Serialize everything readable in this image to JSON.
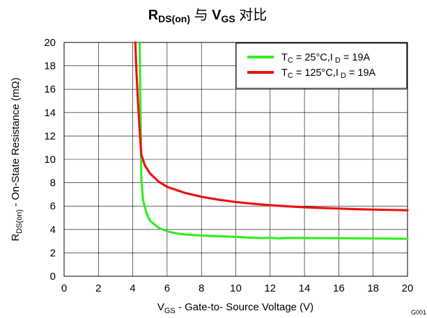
{
  "chart_data": {
    "type": "line",
    "title": {
      "r_main": "R",
      "r_sub": "DS(on)",
      "connector": " 与 ",
      "v_main": "V",
      "v_sub": "GS",
      "suffix": " 对比"
    },
    "xlabel": {
      "main": "V",
      "sub": "GS",
      "rest": " - Gate-to- Source Voltage (V)"
    },
    "ylabel": {
      "main": "R",
      "sub": "DS(on)",
      "rest": " - On-State Resistance  (mΩ)"
    },
    "xlim": [
      0,
      20
    ],
    "ylim": [
      0,
      20
    ],
    "xticks": [
      0,
      2,
      4,
      6,
      8,
      10,
      12,
      14,
      16,
      18,
      20
    ],
    "yticks": [
      0,
      2,
      4,
      6,
      8,
      10,
      12,
      14,
      16,
      18,
      20
    ],
    "grid": true,
    "legend_position": "top-right",
    "series": [
      {
        "name": {
          "t": "T",
          "t_sub": "C",
          "mid": " = 25°C,I",
          "i_sub": " D",
          "end": " = 19A"
        },
        "color": "#33ee22",
        "x": [
          4.4,
          4.45,
          4.5,
          4.6,
          4.8,
          5.0,
          5.5,
          6.0,
          6.5,
          7,
          8,
          9,
          10,
          11,
          11.5,
          12,
          12.5,
          13,
          14,
          15,
          16,
          17,
          18,
          19,
          20
        ],
        "y": [
          20,
          14,
          8.3,
          6.5,
          5.4,
          4.75,
          4.15,
          3.85,
          3.68,
          3.58,
          3.48,
          3.42,
          3.37,
          3.3,
          3.26,
          3.3,
          3.24,
          3.28,
          3.27,
          3.26,
          3.25,
          3.24,
          3.23,
          3.22,
          3.2
        ]
      },
      {
        "name": {
          "t": "T",
          "t_sub": "C",
          "mid": " = 125°C,I",
          "i_sub": " D",
          "end": " = 19A"
        },
        "color": "#ee1111",
        "x": [
          4.15,
          4.2,
          4.3,
          4.4,
          4.5,
          4.7,
          5.0,
          5.5,
          6,
          7,
          8,
          9,
          10,
          11,
          12,
          13,
          14,
          15,
          16,
          17,
          18,
          19,
          20
        ],
        "y": [
          20,
          18,
          15,
          12.5,
          10.4,
          9.5,
          8.8,
          8.1,
          7.65,
          7.15,
          6.8,
          6.55,
          6.35,
          6.2,
          6.08,
          5.98,
          5.9,
          5.84,
          5.79,
          5.74,
          5.7,
          5.67,
          5.64
        ]
      }
    ],
    "annotation": "G001"
  }
}
